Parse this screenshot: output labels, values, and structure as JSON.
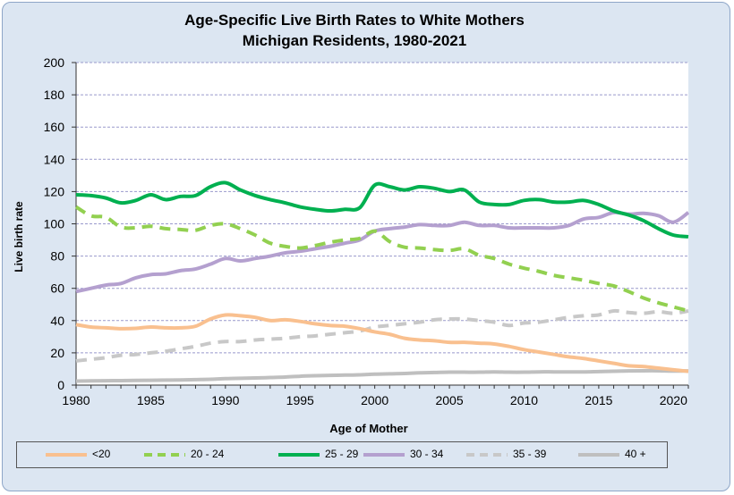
{
  "chart_data": {
    "type": "line",
    "title": "Age-Specific Live Birth Rates to White Mothers",
    "subtitle": "Michigan Residents, 1980-2021",
    "xlabel": "Age of Mother",
    "ylabel": "Live birth rate",
    "xlim": [
      1980,
      2021
    ],
    "ylim": [
      0,
      200
    ],
    "x_ticks": [
      "1980",
      "1985",
      "1990",
      "1995",
      "2000",
      "2005",
      "2010",
      "2015",
      "2020"
    ],
    "y_ticks": [
      "0",
      "20",
      "40",
      "60",
      "80",
      "100",
      "120",
      "140",
      "160",
      "180",
      "200"
    ],
    "grid": true,
    "legend_position": "bottom",
    "x": [
      1980,
      1981,
      1982,
      1983,
      1984,
      1985,
      1986,
      1987,
      1988,
      1989,
      1990,
      1991,
      1992,
      1993,
      1994,
      1995,
      1996,
      1997,
      1998,
      1999,
      2000,
      2001,
      2002,
      2003,
      2004,
      2005,
      2006,
      2007,
      2008,
      2009,
      2010,
      2011,
      2012,
      2013,
      2014,
      2015,
      2016,
      2017,
      2018,
      2019,
      2020,
      2021
    ],
    "series": [
      {
        "name": "<20",
        "color": "#f9c08f",
        "dash": false,
        "values": [
          37.5,
          36.0,
          35.5,
          35.0,
          35.2,
          36.0,
          35.5,
          35.5,
          36.5,
          41.0,
          43.5,
          43.0,
          42.0,
          40.0,
          40.5,
          39.5,
          38.0,
          37.0,
          36.5,
          35.0,
          33.0,
          31.5,
          29.0,
          28.0,
          27.5,
          26.5,
          26.5,
          26.0,
          25.5,
          24.0,
          22.0,
          20.5,
          19.0,
          17.5,
          16.5,
          15.0,
          13.5,
          12.0,
          11.5,
          10.5,
          9.5,
          8.5
        ]
      },
      {
        "name": "20 - 24",
        "color": "#92d050",
        "dash": true,
        "values": [
          110.5,
          105.0,
          104.0,
          98.0,
          97.5,
          98.5,
          97.0,
          96.5,
          96.0,
          99.0,
          100.0,
          97.0,
          93.0,
          88.0,
          86.0,
          85.0,
          86.5,
          88.5,
          90.0,
          91.0,
          95.5,
          89.0,
          85.5,
          85.0,
          84.0,
          83.5,
          84.5,
          80.5,
          78.5,
          75.0,
          72.5,
          70.5,
          68.0,
          66.5,
          65.0,
          63.0,
          61.5,
          58.0,
          54.0,
          51.0,
          48.5,
          46.0
        ]
      },
      {
        "name": "25 - 29",
        "color": "#00b050",
        "dash": false,
        "values": [
          118.0,
          117.5,
          116.0,
          113.0,
          114.5,
          118.0,
          115.0,
          117.0,
          117.5,
          123.0,
          125.5,
          121.0,
          117.5,
          115.0,
          113.0,
          110.5,
          109.0,
          108.0,
          109.0,
          110.0,
          124.0,
          123.0,
          121.0,
          123.0,
          122.0,
          120.0,
          121.0,
          113.5,
          112.0,
          112.0,
          114.5,
          115.0,
          113.5,
          113.5,
          114.5,
          112.0,
          108.0,
          105.5,
          102.0,
          97.0,
          93.0,
          92.0
        ]
      },
      {
        "name": "30 - 34",
        "color": "#b4a0cf",
        "dash": false,
        "values": [
          58.0,
          60.0,
          62.0,
          63.0,
          66.5,
          68.5,
          69.0,
          71.0,
          72.0,
          75.0,
          78.5,
          77.0,
          78.5,
          80.0,
          82.0,
          83.0,
          84.5,
          86.0,
          88.0,
          90.0,
          95.5,
          97.0,
          98.0,
          99.5,
          99.0,
          99.0,
          101.0,
          99.0,
          99.0,
          97.5,
          97.5,
          97.5,
          97.5,
          99.0,
          103.0,
          104.0,
          107.0,
          106.0,
          106.5,
          105.0,
          101.0,
          107.0
        ]
      },
      {
        "name": "35 - 39",
        "color": "#c8c8c8",
        "dash": true,
        "values": [
          15.0,
          16.0,
          17.0,
          18.5,
          19.0,
          20.0,
          21.0,
          22.5,
          24.0,
          26.0,
          27.0,
          27.0,
          28.0,
          28.5,
          29.0,
          30.0,
          30.5,
          31.5,
          32.5,
          33.5,
          36.0,
          37.0,
          38.0,
          39.0,
          40.5,
          41.0,
          41.0,
          40.0,
          39.0,
          37.0,
          38.5,
          39.0,
          40.5,
          42.0,
          43.0,
          43.5,
          46.0,
          45.0,
          44.5,
          45.5,
          44.5,
          46.0
        ]
      },
      {
        "name": "40 +",
        "color": "#bfbfbf",
        "dash": false,
        "values": [
          2.5,
          2.6,
          2.7,
          2.8,
          2.9,
          3.0,
          3.1,
          3.2,
          3.4,
          3.6,
          4.0,
          4.2,
          4.4,
          4.7,
          5.0,
          5.5,
          5.8,
          6.0,
          6.2,
          6.4,
          6.8,
          7.0,
          7.2,
          7.6,
          7.8,
          8.0,
          8.0,
          8.0,
          8.2,
          8.0,
          8.0,
          8.2,
          8.2,
          8.2,
          8.2,
          8.4,
          8.6,
          8.8,
          8.9,
          8.9,
          8.7,
          8.8
        ]
      }
    ]
  }
}
